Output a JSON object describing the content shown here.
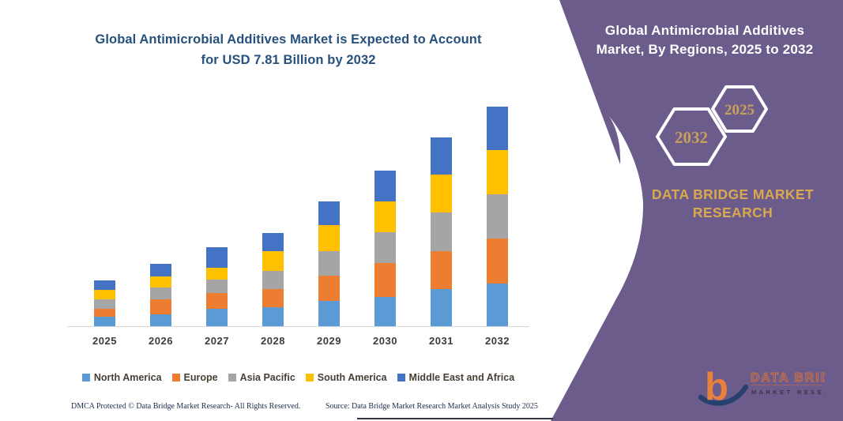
{
  "chart_title": {
    "line1": "Global Antimicrobial Additives Market is Expected to Account",
    "line2": "for USD 7.81 Billion by 2032"
  },
  "chart_data": {
    "type": "bar",
    "stacked": true,
    "unit": "USD Billion",
    "categories": [
      "2025",
      "2026",
      "2027",
      "2028",
      "2029",
      "2030",
      "2031",
      "2032"
    ],
    "series": [
      {
        "name": "North America",
        "color": "#5B9BD5",
        "values": [
          0.35,
          0.42,
          0.61,
          0.68,
          0.89,
          1.05,
          1.31,
          1.53
        ]
      },
      {
        "name": "Europe",
        "color": "#ED7D31",
        "values": [
          0.29,
          0.54,
          0.56,
          0.66,
          0.89,
          1.21,
          1.34,
          1.6
        ]
      },
      {
        "name": "Asia Pacific",
        "color": "#A5A5A5",
        "values": [
          0.35,
          0.42,
          0.47,
          0.66,
          0.87,
          1.1,
          1.37,
          1.57
        ]
      },
      {
        "name": "South America",
        "color": "#FFC000",
        "values": [
          0.35,
          0.4,
          0.42,
          0.7,
          0.94,
          1.09,
          1.34,
          1.57
        ]
      },
      {
        "name": "Middle East and Africa",
        "color": "#4472C4",
        "values": [
          0.33,
          0.44,
          0.73,
          0.66,
          0.85,
          1.11,
          1.33,
          1.54
        ]
      }
    ],
    "totals": [
      1.67,
      2.22,
      2.79,
      3.36,
      4.44,
      5.56,
      6.69,
      7.81
    ],
    "title": "Global Antimicrobial Additives Market is Expected to Account for USD 7.81 Billion by 2032",
    "xlabel": "",
    "ylabel": "USD Billion",
    "ylim": [
      0,
      7.81
    ],
    "grid": false,
    "legend_position": "bottom"
  },
  "right_panel": {
    "title_line1": "Global Antimicrobial Additives",
    "title_line2": "Market, By Regions, 2025 to 2032",
    "hexagon_back_year": "2032",
    "hexagon_front_year": "2025",
    "brand_line1": "DATA BRIDGE MARKET",
    "brand_line2": "RESEARCH",
    "panel_color": "#6b5c8c",
    "gold_color": "#c9a05a"
  },
  "logo": {
    "glyph": "b",
    "name": "DATA BRIDGE",
    "tagline": "MARKET RESEARCH"
  },
  "footer": {
    "left": "DMCA Protected © Data Bridge Market Research-  All Rights Reserved.",
    "right": "Source: Data Bridge Market Research  Market Analysis Study 2025"
  }
}
